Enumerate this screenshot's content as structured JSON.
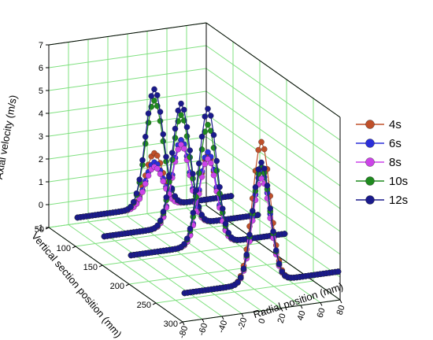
{
  "chart_data": {
    "type": "scatter",
    "subtype": "3d-line-scatter",
    "title": "",
    "ylabel": "Axial velocity (m/s)",
    "xlabel": "Radial position (mm)",
    "zlabel": "Vertical section position (mm)",
    "ylim": [
      -1,
      7
    ],
    "xlim": [
      -80,
      80
    ],
    "zlim": [
      50,
      300
    ],
    "y_ticks": [
      "-1",
      "0",
      "1",
      "2",
      "3",
      "4",
      "5",
      "6",
      "7"
    ],
    "x_ticks": [
      "-80",
      "-60",
      "-40",
      "-20",
      "0",
      "20",
      "40",
      "60",
      "80"
    ],
    "z_ticks": [
      "50",
      "100",
      "150",
      "200",
      "250",
      "300"
    ],
    "grid": true,
    "legend_position": "right",
    "sections_mm": [
      100,
      150,
      200,
      300
    ],
    "series": [
      {
        "name": "4s",
        "color": "#c0502a",
        "peaks": [
          2.6,
          4.0,
          4.2,
          6.4
        ]
      },
      {
        "name": "6s",
        "color": "#2b2fd9",
        "peaks": [
          2.2,
          4.0,
          4.3,
          5.1
        ]
      },
      {
        "name": "8s",
        "color": "#cc44e8",
        "peaks": [
          2.0,
          3.8,
          4.0,
          4.8
        ]
      },
      {
        "name": "10s",
        "color": "#1f8a1f",
        "peaks": [
          4.9,
          5.1,
          5.5,
          5.3
        ]
      },
      {
        "name": "12s",
        "color": "#1a1a8c",
        "peaks": [
          5.4,
          5.6,
          6.2,
          5.5
        ]
      }
    ]
  }
}
